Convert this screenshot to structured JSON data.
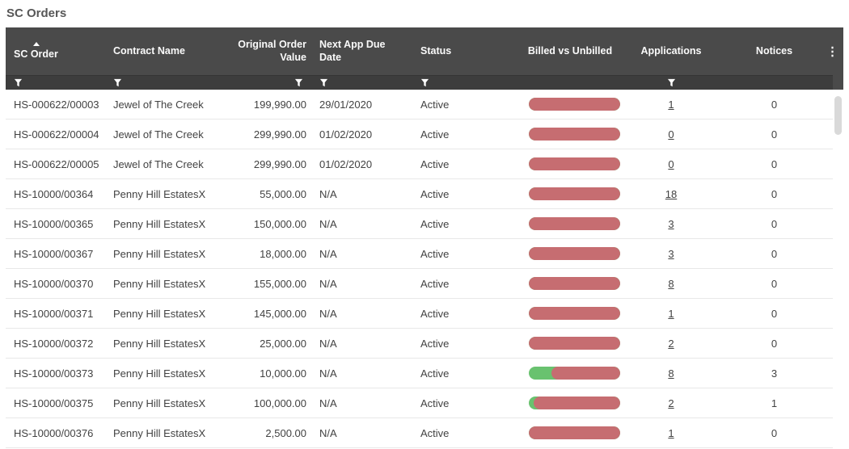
{
  "page": {
    "title": "SC Orders"
  },
  "colors": {
    "header-bg": "#4a4a4a",
    "filter-bg": "#3d3d3d",
    "header-text": "#fafafa",
    "title-text": "#575757",
    "row-text": "#424242",
    "row-border": "#e8e8e8",
    "bar-red": "#c66d71",
    "bar-green": "#69c26f",
    "scroll-thumb": "#d9d9d9"
  },
  "icons": {
    "column_menu_glyph": "⋮",
    "filter": "funnel-icon",
    "sort": "sort-ascending-caret"
  },
  "table": {
    "columns": [
      {
        "label": "SC Order",
        "sorted": "asc",
        "filter": true,
        "align": "left"
      },
      {
        "label": "Contract Name",
        "filter": true,
        "align": "left"
      },
      {
        "label": "Original Order Value",
        "filter": true,
        "align": "right"
      },
      {
        "label": "Next App Due Date",
        "filter": true,
        "align": "left"
      },
      {
        "label": "Status",
        "filter": true,
        "align": "left"
      },
      {
        "label": "Billed vs Unbilled",
        "filter": false,
        "align": "center"
      },
      {
        "label": "Applications",
        "filter": true,
        "align": "center"
      },
      {
        "label": "Notices",
        "filter": false,
        "align": "center"
      }
    ],
    "rows": [
      {
        "sc_order": "HS-000622/00003",
        "contract_name": "Jewel of The Creek",
        "original_order_value": "199,990.00",
        "next_app_due_date": "29/01/2020",
        "status": "Active",
        "billed_pct": 0,
        "applications": "1",
        "notices": "0"
      },
      {
        "sc_order": "HS-000622/00004",
        "contract_name": "Jewel of The Creek",
        "original_order_value": "299,990.00",
        "next_app_due_date": "01/02/2020",
        "status": "Active",
        "billed_pct": 0,
        "applications": "0",
        "notices": "0"
      },
      {
        "sc_order": "HS-000622/00005",
        "contract_name": "Jewel of The Creek",
        "original_order_value": "299,990.00",
        "next_app_due_date": "01/02/2020",
        "status": "Active",
        "billed_pct": 0,
        "applications": "0",
        "notices": "0"
      },
      {
        "sc_order": "HS-10000/00364",
        "contract_name": "Penny Hill EstatesX",
        "original_order_value": "55,000.00",
        "next_app_due_date": "N/A",
        "status": "Active",
        "billed_pct": 0,
        "applications": "18",
        "notices": "0"
      },
      {
        "sc_order": "HS-10000/00365",
        "contract_name": "Penny Hill EstatesX",
        "original_order_value": "150,000.00",
        "next_app_due_date": "N/A",
        "status": "Active",
        "billed_pct": 0,
        "applications": "3",
        "notices": "0"
      },
      {
        "sc_order": "HS-10000/00367",
        "contract_name": "Penny Hill EstatesX",
        "original_order_value": "18,000.00",
        "next_app_due_date": "N/A",
        "status": "Active",
        "billed_pct": 0,
        "applications": "3",
        "notices": "0"
      },
      {
        "sc_order": "HS-10000/00370",
        "contract_name": "Penny Hill EstatesX",
        "original_order_value": "155,000.00",
        "next_app_due_date": "N/A",
        "status": "Active",
        "billed_pct": 0,
        "applications": "8",
        "notices": "0"
      },
      {
        "sc_order": "HS-10000/00371",
        "contract_name": "Penny Hill EstatesX",
        "original_order_value": "145,000.00",
        "next_app_due_date": "N/A",
        "status": "Active",
        "billed_pct": 0,
        "applications": "1",
        "notices": "0"
      },
      {
        "sc_order": "HS-10000/00372",
        "contract_name": "Penny Hill EstatesX",
        "original_order_value": "25,000.00",
        "next_app_due_date": "N/A",
        "status": "Active",
        "billed_pct": 0,
        "applications": "2",
        "notices": "0"
      },
      {
        "sc_order": "HS-10000/00373",
        "contract_name": "Penny Hill EstatesX",
        "original_order_value": "10,000.00",
        "next_app_due_date": "N/A",
        "status": "Active",
        "billed_pct": 25,
        "applications": "8",
        "notices": "3"
      },
      {
        "sc_order": "HS-10000/00375",
        "contract_name": "Penny Hill EstatesX",
        "original_order_value": "100,000.00",
        "next_app_due_date": "N/A",
        "status": "Active",
        "billed_pct": 5,
        "applications": "2",
        "notices": "1"
      },
      {
        "sc_order": "HS-10000/00376",
        "contract_name": "Penny Hill EstatesX",
        "original_order_value": "2,500.00",
        "next_app_due_date": "N/A",
        "status": "Active",
        "billed_pct": 0,
        "applications": "1",
        "notices": "0"
      }
    ]
  }
}
